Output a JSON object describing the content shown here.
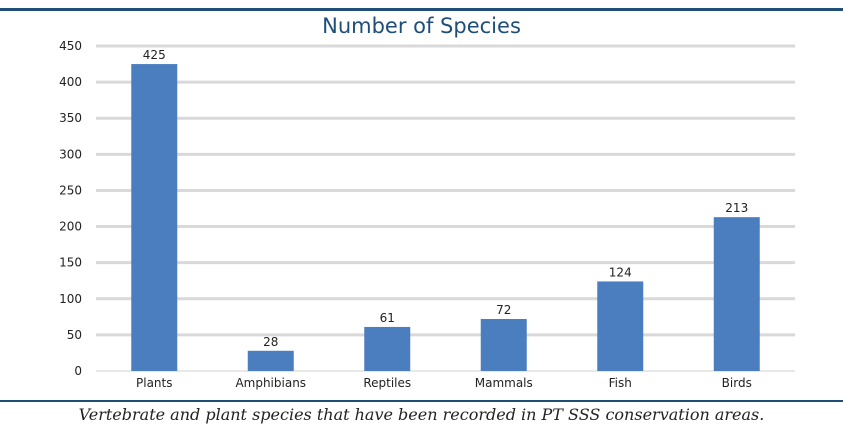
{
  "caption": "Vertebrate and plant species that have been recorded in PT SSS conservation areas.",
  "chart_data": {
    "type": "bar",
    "title": "Number of Species",
    "categories": [
      "Plants",
      "Amphibians",
      "Reptiles",
      "Mammals",
      "Fish",
      "Birds"
    ],
    "values": [
      425,
      28,
      61,
      72,
      124,
      213
    ],
    "data_labels": [
      "425",
      "28",
      "61",
      "72",
      "124",
      "213"
    ],
    "y_ticks": [
      "0",
      "50",
      "100",
      "150",
      "200",
      "250",
      "300",
      "350",
      "400",
      "450"
    ],
    "ylim": [
      0,
      450
    ],
    "grid": true,
    "legend": "none",
    "bar_color": "#4a7ebf",
    "grid_color": "#d9d9d9"
  }
}
